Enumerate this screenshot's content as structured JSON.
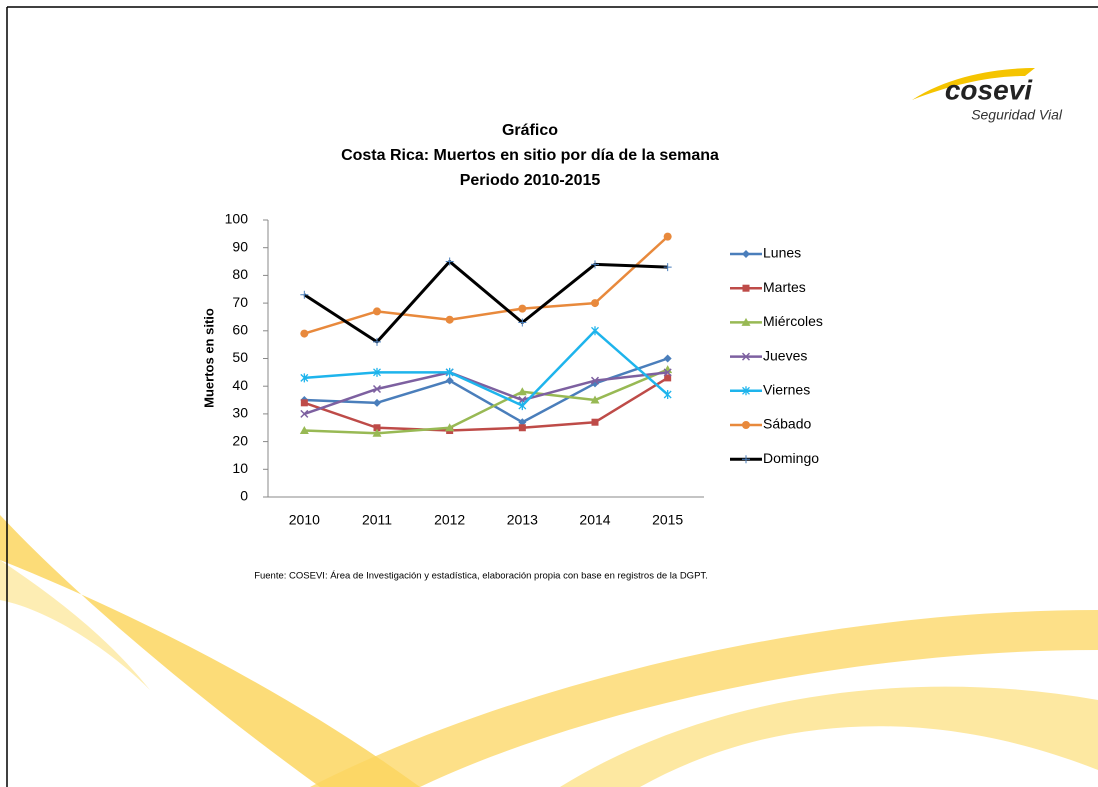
{
  "logo": {
    "name": "cosevi",
    "tagline": "Seguridad Vial"
  },
  "chart_data": {
    "type": "line",
    "title_lines": [
      "Gráfico",
      "Costa Rica: Muertos en sitio por día de la semana",
      "Periodo 2010-2015"
    ],
    "y_label": "Muertos en sitio",
    "source": "Fuente: COSEVI: Área de Investigación y estadística, elaboración propia con base en registros de la DGPT.",
    "categories": [
      "2010",
      "2011",
      "2012",
      "2013",
      "2014",
      "2015"
    ],
    "ylim": [
      0,
      100
    ],
    "yticks": [
      0,
      10,
      20,
      30,
      40,
      50,
      60,
      70,
      80,
      90,
      100
    ],
    "legend": "right",
    "series": [
      {
        "name": "Lunes",
        "color": "#4a7ebb",
        "marker": "diamond",
        "values": [
          35,
          34,
          42,
          27,
          41,
          50
        ]
      },
      {
        "name": "Martes",
        "color": "#be4b48",
        "marker": "square",
        "values": [
          34,
          25,
          24,
          25,
          27,
          43
        ]
      },
      {
        "name": "Miércoles",
        "color": "#98b954",
        "marker": "triangle",
        "values": [
          24,
          23,
          25,
          38,
          35,
          46
        ]
      },
      {
        "name": "Jueves",
        "color": "#7d60a0",
        "marker": "x",
        "values": [
          30,
          39,
          45,
          35,
          42,
          45
        ]
      },
      {
        "name": "Viernes",
        "color": "#1eb4ec",
        "marker": "star",
        "values": [
          43,
          45,
          45,
          33,
          60,
          37
        ]
      },
      {
        "name": "Sábado",
        "color": "#e8893c",
        "marker": "circle",
        "values": [
          59,
          67,
          64,
          68,
          70,
          94
        ]
      },
      {
        "name": "Domingo",
        "color": "#000000",
        "marker": "plus",
        "values": [
          73,
          56,
          85,
          63,
          84,
          83
        ]
      }
    ]
  }
}
